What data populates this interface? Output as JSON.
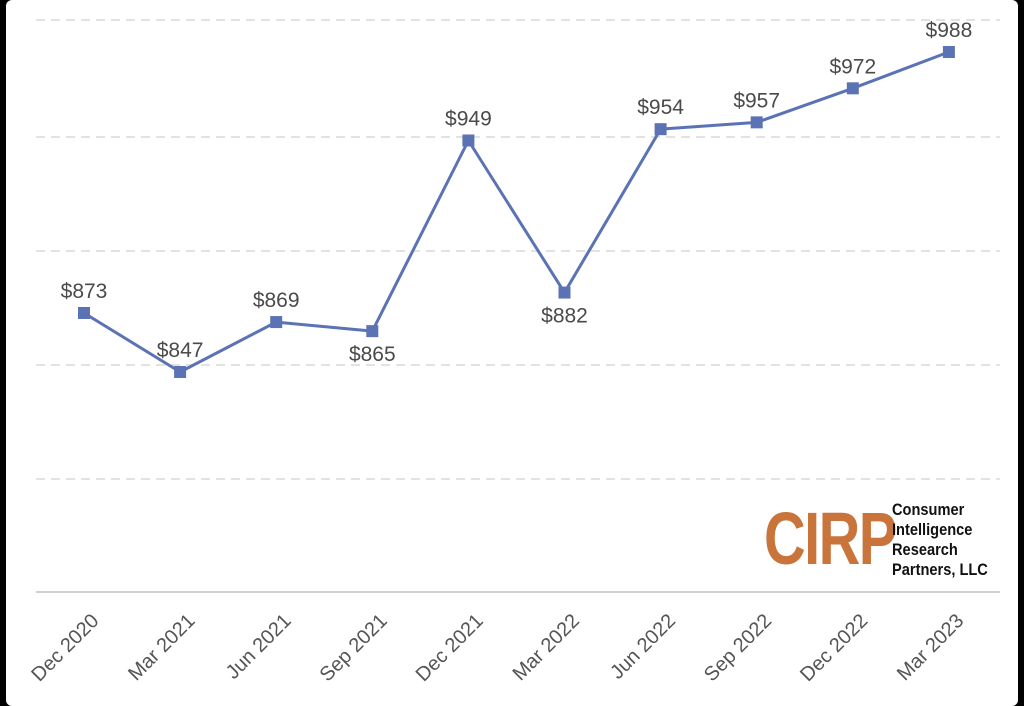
{
  "chart_data": {
    "type": "line",
    "categories": [
      "Dec 2020",
      "Mar 2021",
      "Jun 2021",
      "Sep 2021",
      "Dec 2021",
      "Mar 2022",
      "Jun 2022",
      "Sep 2022",
      "Dec 2022",
      "Mar 2023"
    ],
    "values": [
      873,
      847,
      869,
      865,
      949,
      882,
      954,
      957,
      972,
      988
    ],
    "value_labels": [
      "$873",
      "$847",
      "$869",
      "$865",
      "$949",
      "$882",
      "$954",
      "$957",
      "$972",
      "$988"
    ],
    "title": "",
    "xlabel": "",
    "ylabel": "",
    "y_axis_labels_shown": false,
    "gridlines": "horizontal dashed",
    "legend": "none",
    "colors": {
      "line": "#5b73b4",
      "grid": "#d9d9d9",
      "label": "#4a4a4a"
    }
  },
  "logo": {
    "mark": "CIRP",
    "lines": [
      "Consumer",
      "Intelligence",
      "Research",
      "Partners, LLC"
    ],
    "mark_color": "#c8743a"
  }
}
